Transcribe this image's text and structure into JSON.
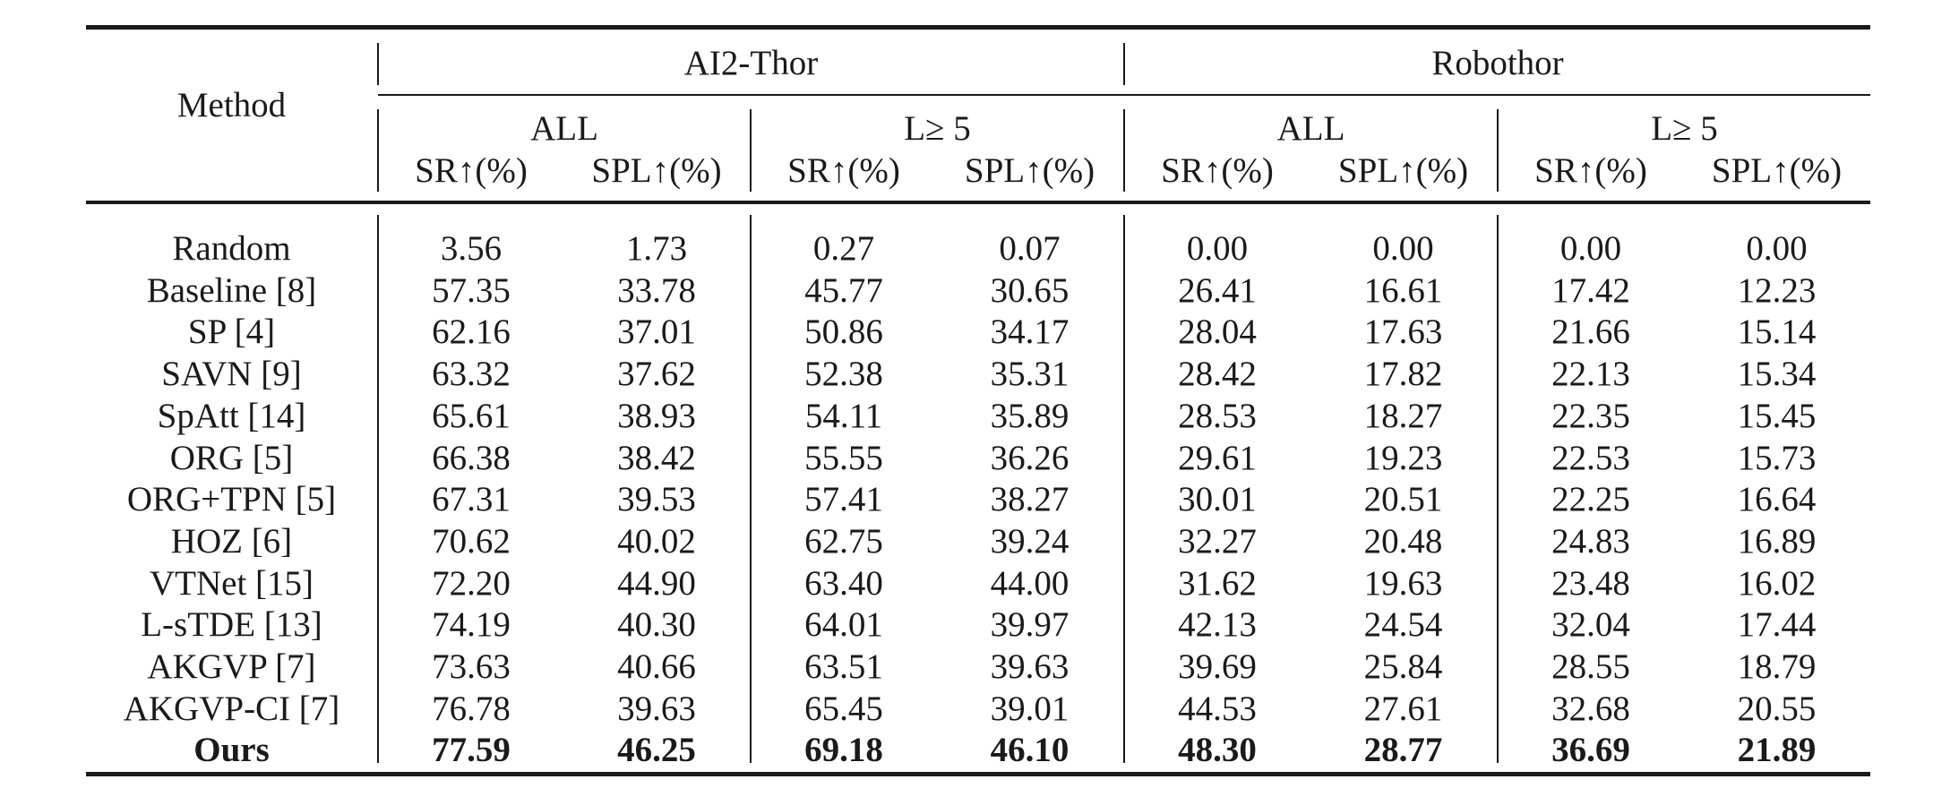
{
  "table": {
    "header": {
      "method": "Method",
      "group_ai2": "AI2-Thor",
      "group_robo": "Robothor",
      "sub_all": "ALL",
      "sub_l5": "L≥ 5",
      "col_sr": "SR↑(%)",
      "col_spl": "SPL↑(%)"
    },
    "rows": [
      {
        "method": "Random",
        "v": [
          "3.56",
          "1.73",
          "0.27",
          "0.07",
          "0.00",
          "0.00",
          "0.00",
          "0.00"
        ]
      },
      {
        "method": "Baseline [8]",
        "v": [
          "57.35",
          "33.78",
          "45.77",
          "30.65",
          "26.41",
          "16.61",
          "17.42",
          "12.23"
        ]
      },
      {
        "method": "SP [4]",
        "v": [
          "62.16",
          "37.01",
          "50.86",
          "34.17",
          "28.04",
          "17.63",
          "21.66",
          "15.14"
        ]
      },
      {
        "method": "SAVN [9]",
        "v": [
          "63.32",
          "37.62",
          "52.38",
          "35.31",
          "28.42",
          "17.82",
          "22.13",
          "15.34"
        ]
      },
      {
        "method": "SpAtt [14]",
        "v": [
          "65.61",
          "38.93",
          "54.11",
          "35.89",
          "28.53",
          "18.27",
          "22.35",
          "15.45"
        ]
      },
      {
        "method": "ORG [5]",
        "v": [
          "66.38",
          "38.42",
          "55.55",
          "36.26",
          "29.61",
          "19.23",
          "22.53",
          "15.73"
        ]
      },
      {
        "method": "ORG+TPN [5]",
        "v": [
          "67.31",
          "39.53",
          "57.41",
          "38.27",
          "30.01",
          "20.51",
          "22.25",
          "16.64"
        ]
      },
      {
        "method": "HOZ [6]",
        "v": [
          "70.62",
          "40.02",
          "62.75",
          "39.24",
          "32.27",
          "20.48",
          "24.83",
          "16.89"
        ]
      },
      {
        "method": "VTNet [15]",
        "v": [
          "72.20",
          "44.90",
          "63.40",
          "44.00",
          "31.62",
          "19.63",
          "23.48",
          "16.02"
        ]
      },
      {
        "method": "L-sTDE [13]",
        "v": [
          "74.19",
          "40.30",
          "64.01",
          "39.97",
          "42.13",
          "24.54",
          "32.04",
          "17.44"
        ]
      },
      {
        "method": "AKGVP [7]",
        "v": [
          "73.63",
          "40.66",
          "63.51",
          "39.63",
          "39.69",
          "25.84",
          "28.55",
          "18.79"
        ]
      },
      {
        "method": "AKGVP-CI [7]",
        "v": [
          "76.78",
          "39.63",
          "65.45",
          "39.01",
          "44.53",
          "27.61",
          "32.68",
          "20.55"
        ]
      },
      {
        "method": "Ours",
        "v": [
          "77.59",
          "46.25",
          "69.18",
          "46.10",
          "48.30",
          "28.77",
          "36.69",
          "21.89"
        ]
      }
    ]
  }
}
